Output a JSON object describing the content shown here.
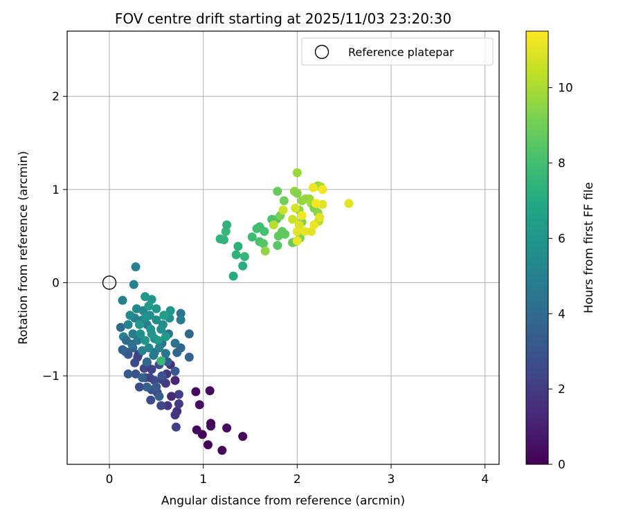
{
  "chart_data": {
    "type": "scatter",
    "title": "FOV centre drift starting at 2025/11/03 23:20:30",
    "xlabel": "Angular distance from reference (arcmin)",
    "ylabel": "Rotation from reference (arcmin)",
    "xlim": [
      -0.45,
      4.15
    ],
    "ylim": [
      -1.95,
      2.7
    ],
    "xticks": [
      0,
      1,
      2,
      3,
      4
    ],
    "yticks": [
      -1,
      0,
      1,
      2
    ],
    "ytick_labels": [
      "−1",
      "0",
      "1",
      "2"
    ],
    "grid": true,
    "legend": {
      "label": "Reference platepar",
      "location": "top-right"
    },
    "reference_point": {
      "x": 0,
      "y": 0
    },
    "colorbar": {
      "label": "Hours from first FF file",
      "min": 0,
      "max": 11.5,
      "ticks": [
        0,
        2,
        4,
        6,
        8,
        10
      ],
      "colormap": "viridis"
    },
    "points": [
      {
        "x": 0.92,
        "y": -1.17,
        "h": 0.3
      },
      {
        "x": 1.07,
        "y": -1.16,
        "h": 0.3
      },
      {
        "x": 0.96,
        "y": -1.31,
        "h": 0.4
      },
      {
        "x": 0.93,
        "y": -1.58,
        "h": 0.3
      },
      {
        "x": 0.99,
        "y": -1.63,
        "h": 0.2
      },
      {
        "x": 1.08,
        "y": -1.51,
        "h": 0.3
      },
      {
        "x": 1.08,
        "y": -1.54,
        "h": 0.3
      },
      {
        "x": 1.25,
        "y": -1.56,
        "h": 0.4
      },
      {
        "x": 1.42,
        "y": -1.65,
        "h": 0.2
      },
      {
        "x": 1.05,
        "y": -1.74,
        "h": 0.1
      },
      {
        "x": 1.2,
        "y": -1.8,
        "h": 0.2
      },
      {
        "x": 0.71,
        "y": -1.55,
        "h": 2.2
      },
      {
        "x": 0.72,
        "y": -1.38,
        "h": 1.6
      },
      {
        "x": 0.7,
        "y": -1.42,
        "h": 1.8
      },
      {
        "x": 0.74,
        "y": -1.3,
        "h": 2.0
      },
      {
        "x": 0.74,
        "y": -1.2,
        "h": 2.2
      },
      {
        "x": 0.62,
        "y": -1.32,
        "h": 1.8
      },
      {
        "x": 0.55,
        "y": -1.32,
        "h": 2.4
      },
      {
        "x": 0.66,
        "y": -1.22,
        "h": 1.4
      },
      {
        "x": 0.7,
        "y": -1.05,
        "h": 1.2
      },
      {
        "x": 0.65,
        "y": -0.88,
        "h": 1.6
      },
      {
        "x": 0.61,
        "y": -0.98,
        "h": 1.8
      },
      {
        "x": 0.6,
        "y": -1.08,
        "h": 2.0
      },
      {
        "x": 0.56,
        "y": -1.04,
        "h": 2.2
      },
      {
        "x": 0.51,
        "y": -1.18,
        "h": 2.4
      },
      {
        "x": 0.44,
        "y": -1.26,
        "h": 2.6
      },
      {
        "x": 0.45,
        "y": -1.15,
        "h": 2.8
      },
      {
        "x": 0.48,
        "y": -1.05,
        "h": 2.6
      },
      {
        "x": 0.43,
        "y": -1.02,
        "h": 2.4
      },
      {
        "x": 0.38,
        "y": -1.02,
        "h": 2.2
      },
      {
        "x": 0.32,
        "y": -1.12,
        "h": 2.6
      },
      {
        "x": 0.28,
        "y": -0.98,
        "h": 2.8
      },
      {
        "x": 0.27,
        "y": -0.86,
        "h": 2.6
      },
      {
        "x": 0.3,
        "y": -0.8,
        "h": 2.4
      },
      {
        "x": 0.31,
        "y": -0.77,
        "h": 2.2
      },
      {
        "x": 0.4,
        "y": -0.86,
        "h": 2.0
      },
      {
        "x": 0.45,
        "y": -0.93,
        "h": 2.2
      },
      {
        "x": 0.37,
        "y": -0.92,
        "h": 2.4
      },
      {
        "x": 0.53,
        "y": -0.88,
        "h": 2.6
      },
      {
        "x": 0.56,
        "y": -1.0,
        "h": 3.0
      },
      {
        "x": 0.7,
        "y": -0.95,
        "h": 3.2
      },
      {
        "x": 0.62,
        "y": -0.85,
        "h": 3.2
      },
      {
        "x": 0.53,
        "y": -1.22,
        "h": 3.4
      },
      {
        "x": 0.5,
        "y": -1.12,
        "h": 3.2
      },
      {
        "x": 0.4,
        "y": -1.12,
        "h": 3.6
      },
      {
        "x": 0.35,
        "y": -1.02,
        "h": 3.6
      },
      {
        "x": 0.2,
        "y": -0.98,
        "h": 3.2
      },
      {
        "x": 0.17,
        "y": -0.74,
        "h": 3.4
      },
      {
        "x": 0.2,
        "y": -0.77,
        "h": 3.2
      },
      {
        "x": 0.14,
        "y": -0.72,
        "h": 3.6
      },
      {
        "x": 0.25,
        "y": -0.7,
        "h": 3.6
      },
      {
        "x": 0.85,
        "y": -0.8,
        "h": 3.6
      },
      {
        "x": 0.72,
        "y": -0.75,
        "h": 3.8
      },
      {
        "x": 0.76,
        "y": -0.7,
        "h": 3.8
      },
      {
        "x": 0.85,
        "y": -0.55,
        "h": 3.8
      },
      {
        "x": 0.12,
        "y": -0.48,
        "h": 4.0
      },
      {
        "x": 0.4,
        "y": -0.85,
        "h": 4.0
      },
      {
        "x": 0.48,
        "y": -0.75,
        "h": 4.2
      },
      {
        "x": 0.56,
        "y": -0.65,
        "h": 4.2
      },
      {
        "x": 0.63,
        "y": -0.55,
        "h": 4.4
      },
      {
        "x": 0.7,
        "y": -0.65,
        "h": 4.4
      },
      {
        "x": 0.6,
        "y": -0.76,
        "h": 4.6
      },
      {
        "x": 0.3,
        "y": -0.62,
        "h": 4.6
      },
      {
        "x": 0.25,
        "y": -0.55,
        "h": 4.8
      },
      {
        "x": 0.4,
        "y": -0.45,
        "h": 4.8
      },
      {
        "x": 0.35,
        "y": -0.4,
        "h": 5.0
      },
      {
        "x": 0.27,
        "y": -0.38,
        "h": 5.0
      },
      {
        "x": 0.2,
        "y": -0.45,
        "h": 5.2
      },
      {
        "x": 0.15,
        "y": -0.58,
        "h": 5.2
      },
      {
        "x": 0.22,
        "y": -0.35,
        "h": 5.4
      },
      {
        "x": 0.29,
        "y": -0.28,
        "h": 5.4
      },
      {
        "x": 0.36,
        "y": -0.3,
        "h": 5.4
      },
      {
        "x": 0.43,
        "y": -0.35,
        "h": 5.6
      },
      {
        "x": 0.5,
        "y": -0.4,
        "h": 5.6
      },
      {
        "x": 0.57,
        "y": -0.45,
        "h": 5.6
      },
      {
        "x": 0.64,
        "y": -0.38,
        "h": 5.8
      },
      {
        "x": 0.76,
        "y": -0.33,
        "h": 4.5
      },
      {
        "x": 0.76,
        "y": -0.4,
        "h": 4.8
      },
      {
        "x": 0.65,
        "y": -0.3,
        "h": 5.9
      },
      {
        "x": 0.14,
        "y": -0.19,
        "h": 5.0
      },
      {
        "x": 0.26,
        "y": -0.02,
        "h": 5.1
      },
      {
        "x": 0.28,
        "y": 0.17,
        "h": 4.9
      },
      {
        "x": 0.45,
        "y": -0.18,
        "h": 6.0
      },
      {
        "x": 0.38,
        "y": -0.15,
        "h": 6.1
      },
      {
        "x": 0.5,
        "y": -0.28,
        "h": 6.0
      },
      {
        "x": 0.55,
        "y": -0.5,
        "h": 5.7
      },
      {
        "x": 0.48,
        "y": -0.6,
        "h": 5.5
      },
      {
        "x": 0.42,
        "y": -0.7,
        "h": 5.3
      },
      {
        "x": 0.35,
        "y": -0.73,
        "h": 5.1
      },
      {
        "x": 0.33,
        "y": -0.55,
        "h": 5.7
      },
      {
        "x": 0.38,
        "y": -0.62,
        "h": 6.0
      },
      {
        "x": 0.45,
        "y": -0.55,
        "h": 6.1
      },
      {
        "x": 0.52,
        "y": -0.62,
        "h": 6.2
      },
      {
        "x": 0.6,
        "y": -0.58,
        "h": 6.2
      },
      {
        "x": 0.58,
        "y": -0.35,
        "h": 6.3
      },
      {
        "x": 0.32,
        "y": -0.45,
        "h": 6.1
      },
      {
        "x": 0.42,
        "y": -0.25,
        "h": 6.2
      },
      {
        "x": 0.55,
        "y": -0.84,
        "h": 7.6
      },
      {
        "x": 0.44,
        "y": -0.5,
        "h": 5.9
      },
      {
        "x": 0.39,
        "y": -0.37,
        "h": 5.8
      },
      {
        "x": 0.47,
        "y": -0.78,
        "h": 4.7
      },
      {
        "x": 0.24,
        "y": -0.66,
        "h": 4.3
      },
      {
        "x": 0.18,
        "y": -0.62,
        "h": 4.1
      },
      {
        "x": 0.53,
        "y": -0.7,
        "h": 5.0
      },
      {
        "x": 1.32,
        "y": 0.07,
        "h": 7.0
      },
      {
        "x": 1.42,
        "y": 0.18,
        "h": 7.2
      },
      {
        "x": 1.35,
        "y": 0.3,
        "h": 7.4
      },
      {
        "x": 1.37,
        "y": 0.39,
        "h": 7.3
      },
      {
        "x": 1.44,
        "y": 0.28,
        "h": 7.5
      },
      {
        "x": 1.18,
        "y": 0.47,
        "h": 7.4
      },
      {
        "x": 1.22,
        "y": 0.46,
        "h": 7.5
      },
      {
        "x": 1.24,
        "y": 0.55,
        "h": 7.6
      },
      {
        "x": 1.25,
        "y": 0.62,
        "h": 7.4
      },
      {
        "x": 1.52,
        "y": 0.49,
        "h": 7.8
      },
      {
        "x": 1.57,
        "y": 0.58,
        "h": 8.0
      },
      {
        "x": 1.6,
        "y": 0.6,
        "h": 7.9
      },
      {
        "x": 1.65,
        "y": 0.55,
        "h": 8.1
      },
      {
        "x": 1.6,
        "y": 0.44,
        "h": 8.2
      },
      {
        "x": 1.64,
        "y": 0.42,
        "h": 8.4
      },
      {
        "x": 1.66,
        "y": 0.34,
        "h": 9.6
      },
      {
        "x": 1.73,
        "y": 0.68,
        "h": 8.2
      },
      {
        "x": 1.78,
        "y": 0.68,
        "h": 8.4
      },
      {
        "x": 1.8,
        "y": 0.5,
        "h": 8.6
      },
      {
        "x": 1.79,
        "y": 0.4,
        "h": 8.5
      },
      {
        "x": 1.84,
        "y": 0.55,
        "h": 8.6
      },
      {
        "x": 1.87,
        "y": 0.52,
        "h": 8.7
      },
      {
        "x": 1.86,
        "y": 0.88,
        "h": 9.0
      },
      {
        "x": 1.79,
        "y": 0.98,
        "h": 8.8
      },
      {
        "x": 1.98,
        "y": 0.44,
        "h": 9.0
      },
      {
        "x": 1.95,
        "y": 0.43,
        "h": 8.8
      },
      {
        "x": 1.82,
        "y": 0.72,
        "h": 9.2
      },
      {
        "x": 1.85,
        "y": 0.78,
        "h": 10.6
      },
      {
        "x": 1.75,
        "y": 0.62,
        "h": 10.2
      },
      {
        "x": 1.97,
        "y": 0.98,
        "h": 9.6
      },
      {
        "x": 2.0,
        "y": 0.96,
        "h": 9.4
      },
      {
        "x": 2.0,
        "y": 1.18,
        "h": 9.8
      },
      {
        "x": 2.05,
        "y": 0.88,
        "h": 9.6
      },
      {
        "x": 2.09,
        "y": 0.9,
        "h": 9.7
      },
      {
        "x": 2.13,
        "y": 0.9,
        "h": 9.8
      },
      {
        "x": 2.02,
        "y": 0.78,
        "h": 9.5
      },
      {
        "x": 2.05,
        "y": 0.65,
        "h": 9.4
      },
      {
        "x": 2.03,
        "y": 0.48,
        "h": 9.2
      },
      {
        "x": 2.15,
        "y": 0.85,
        "h": 9.9
      },
      {
        "x": 2.18,
        "y": 0.8,
        "h": 9.3
      },
      {
        "x": 2.22,
        "y": 0.75,
        "h": 9.5
      },
      {
        "x": 2.22,
        "y": 1.04,
        "h": 9.6
      },
      {
        "x": 2.25,
        "y": 1.03,
        "h": 10.0
      },
      {
        "x": 2.23,
        "y": 0.66,
        "h": 10.2
      },
      {
        "x": 1.95,
        "y": 0.68,
        "h": 10.6
      },
      {
        "x": 1.98,
        "y": 0.8,
        "h": 10.8
      },
      {
        "x": 2.02,
        "y": 0.62,
        "h": 10.9
      },
      {
        "x": 2.0,
        "y": 0.55,
        "h": 11.0
      },
      {
        "x": 2.0,
        "y": 0.45,
        "h": 11.2
      },
      {
        "x": 2.08,
        "y": 0.55,
        "h": 11.1
      },
      {
        "x": 2.15,
        "y": 0.55,
        "h": 11.0
      },
      {
        "x": 2.18,
        "y": 0.62,
        "h": 11.2
      },
      {
        "x": 2.24,
        "y": 0.7,
        "h": 11.0
      },
      {
        "x": 2.2,
        "y": 0.85,
        "h": 11.2
      },
      {
        "x": 2.27,
        "y": 0.84,
        "h": 11.0
      },
      {
        "x": 2.17,
        "y": 1.02,
        "h": 11.2
      },
      {
        "x": 2.27,
        "y": 1.0,
        "h": 11.3
      },
      {
        "x": 2.55,
        "y": 0.85,
        "h": 11.0
      },
      {
        "x": 2.2,
        "y": 0.85,
        "h": 11.4
      },
      {
        "x": 2.05,
        "y": 0.72,
        "h": 11.3
      }
    ]
  }
}
